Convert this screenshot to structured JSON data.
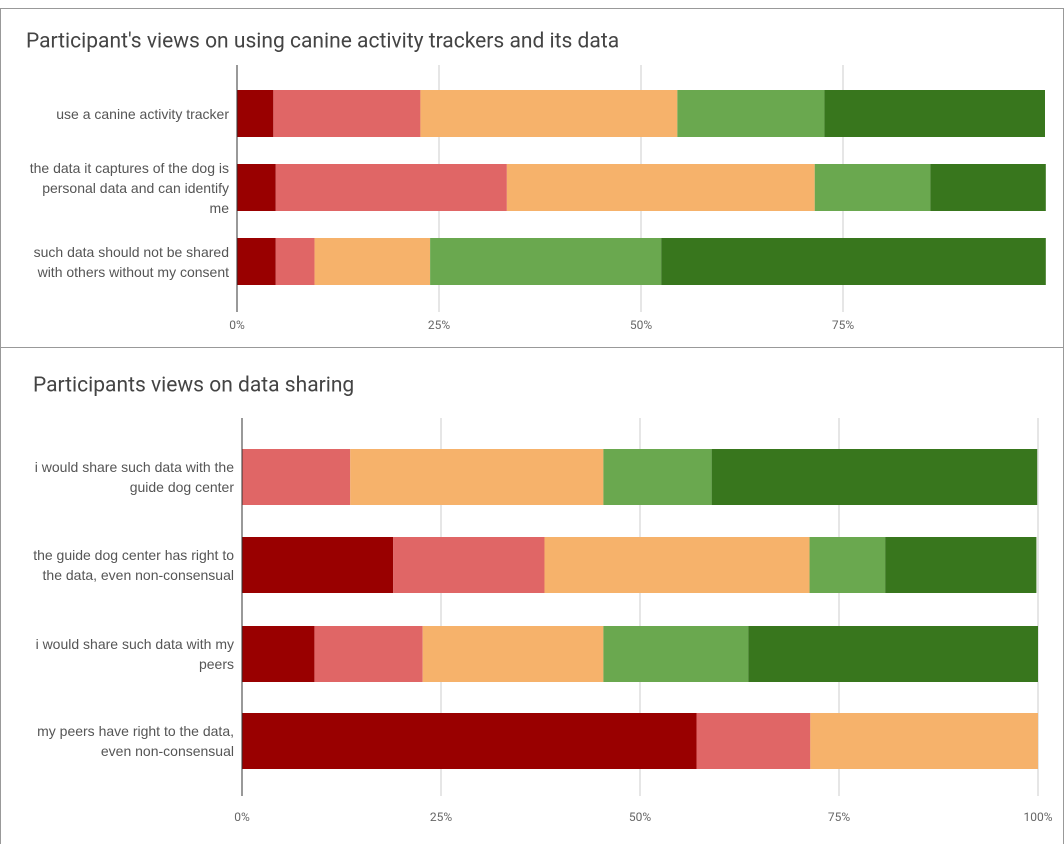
{
  "chart_data": [
    {
      "type": "bar",
      "orientation": "horizontal",
      "stacked": true,
      "title": "Participant's views on using canine activity trackers and its data",
      "categories": [
        "use a canine activity tracker",
        "the data it captures of the dog is personal data and can identify me",
        "such data should not be shared with others without my consent"
      ],
      "series": [
        {
          "color": "#990000",
          "values": [
            4.5,
            4.8,
            4.8
          ]
        },
        {
          "color": "#e06666",
          "values": [
            18.2,
            28.6,
            4.8
          ]
        },
        {
          "color": "#f6b26b",
          "values": [
            31.8,
            38.1,
            14.3
          ]
        },
        {
          "color": "#6aa84f",
          "values": [
            18.2,
            14.3,
            28.6
          ]
        },
        {
          "color": "#38761d",
          "values": [
            27.3,
            14.3,
            47.6
          ]
        }
      ],
      "xlim": [
        0,
        100
      ],
      "xticks": [
        {
          "value": 0,
          "label": "0%"
        },
        {
          "value": 25,
          "label": "25%"
        },
        {
          "value": 50,
          "label": "50%"
        },
        {
          "value": 75,
          "label": "75%"
        }
      ],
      "grid": true
    },
    {
      "type": "bar",
      "orientation": "horizontal",
      "stacked": true,
      "title": "Participants views on data sharing",
      "categories": [
        "i would share such data with the guide dog center",
        "the guide dog center has right to the data, even non-consensual",
        "i would share such data with my peers",
        "my peers have right to the data, even non-consensual"
      ],
      "series": [
        {
          "color": "#990000",
          "values": [
            0,
            19.0,
            9.1,
            57.1
          ]
        },
        {
          "color": "#e06666",
          "values": [
            13.6,
            19.0,
            13.6,
            14.3
          ]
        },
        {
          "color": "#f6b26b",
          "values": [
            31.8,
            33.3,
            22.7,
            28.6
          ]
        },
        {
          "color": "#6aa84f",
          "values": [
            13.6,
            9.5,
            18.2,
            0
          ]
        },
        {
          "color": "#38761d",
          "values": [
            40.9,
            19.0,
            36.4,
            0
          ]
        }
      ],
      "xlim": [
        0,
        100
      ],
      "xticks": [
        {
          "value": 0,
          "label": "0%"
        },
        {
          "value": 25,
          "label": "25%"
        },
        {
          "value": 50,
          "label": "50%"
        },
        {
          "value": 75,
          "label": "75%"
        },
        {
          "value": 100,
          "label": "100%"
        }
      ],
      "grid": true
    }
  ]
}
